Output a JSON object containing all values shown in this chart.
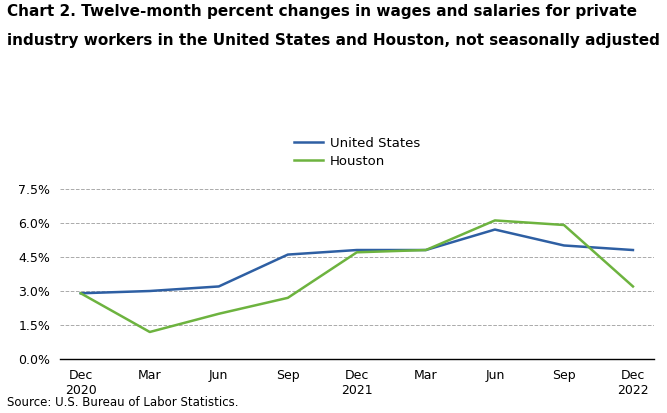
{
  "title_line1": "Chart 2. Twelve-month percent changes in wages and salaries for private",
  "title_line2": "industry workers in the United States and Houston, not seasonally adjusted",
  "x_labels": [
    "Dec",
    "Mar",
    "Jun",
    "Sep",
    "Dec",
    "Mar",
    "Jun",
    "Sep",
    "Dec"
  ],
  "x_year_labels": [
    [
      "Dec\n2020",
      0
    ],
    [
      "Dec\n2021",
      4
    ],
    [
      "Dec\n2022",
      8
    ]
  ],
  "x_month_labels": [
    [
      "Mar",
      1
    ],
    [
      "Jun",
      2
    ],
    [
      "Sep",
      3
    ],
    [
      "Mar",
      5
    ],
    [
      "Jun",
      6
    ],
    [
      "Sep",
      7
    ]
  ],
  "us_values": [
    2.9,
    3.0,
    3.2,
    4.6,
    4.8,
    4.8,
    5.7,
    5.0,
    4.8
  ],
  "houston_values": [
    2.9,
    1.2,
    2.0,
    2.7,
    4.7,
    4.8,
    6.1,
    5.9,
    3.2
  ],
  "us_color": "#2e5fa3",
  "houston_color": "#6db33f",
  "ylim": [
    0.0,
    7.8
  ],
  "yticks": [
    0.0,
    1.5,
    3.0,
    4.5,
    6.0,
    7.5
  ],
  "ytick_labels": [
    "0.0%",
    "1.5%",
    "3.0%",
    "4.5%",
    "6.0%",
    "7.5%"
  ],
  "legend_labels": [
    "United States",
    "Houston"
  ],
  "source_text": "Source: U.S. Bureau of Labor Statistics.",
  "background_color": "#ffffff",
  "linewidth": 1.8,
  "title_fontsize": 11,
  "tick_fontsize": 9,
  "legend_fontsize": 9.5,
  "source_fontsize": 8.5
}
